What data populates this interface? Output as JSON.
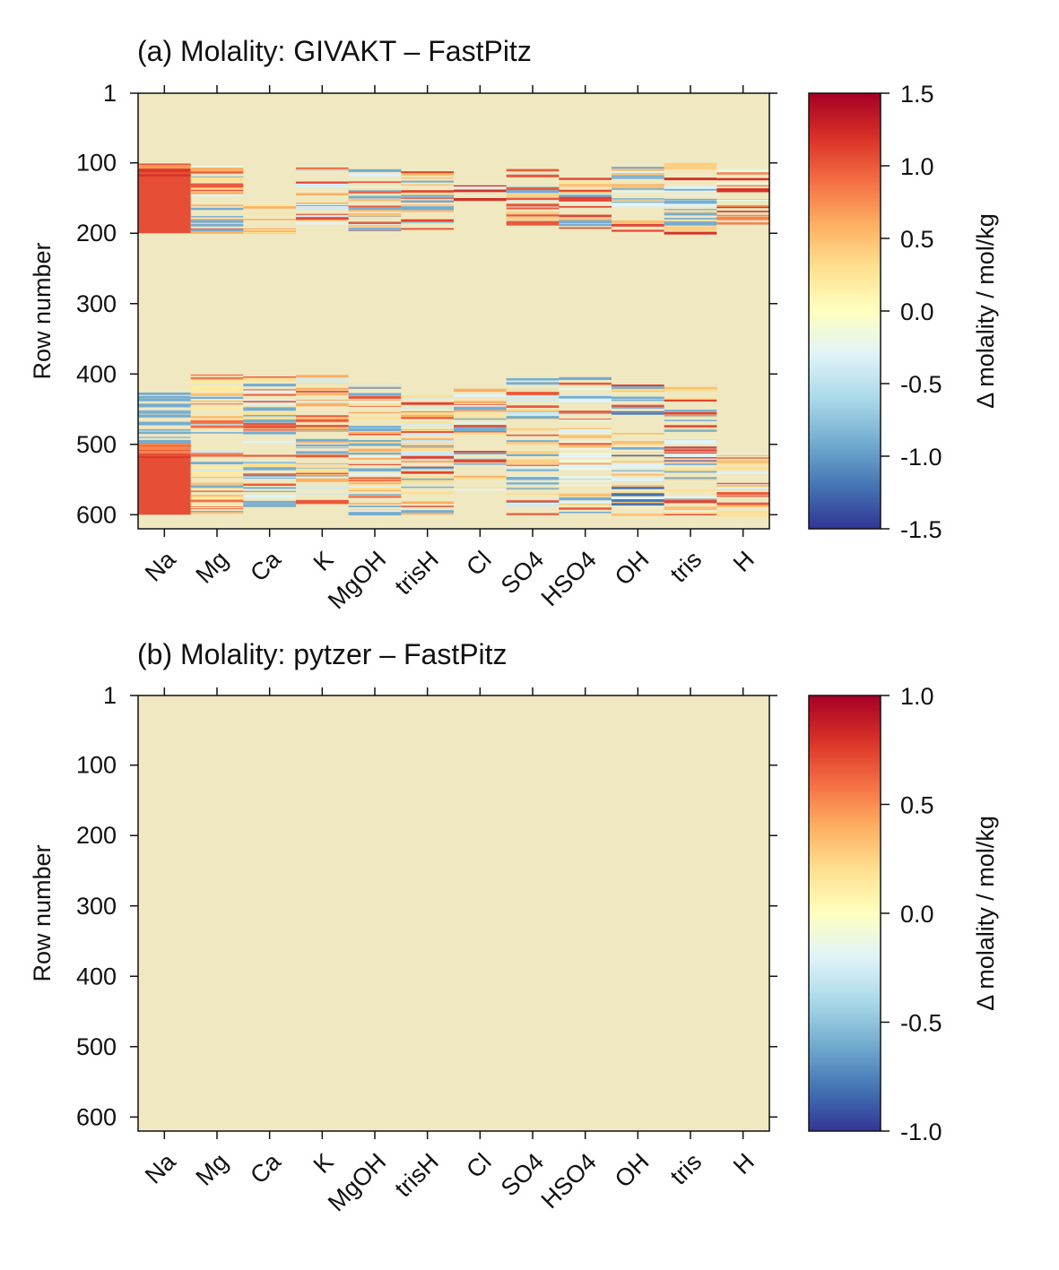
{
  "chart_data": [
    {
      "type": "heatmap",
      "title": "(a) Molality: GIVAKT – FastPitz",
      "ylabel": "Row number",
      "colorbar_label": "Δ molality / mol/kg",
      "categories": [
        "Na",
        "Mg",
        "Ca",
        "K",
        "MgOH",
        "trisH",
        "Cl",
        "SO4",
        "HSO4",
        "OH",
        "tris",
        "H"
      ],
      "ylim": [
        620,
        1
      ],
      "yticks": [
        "1",
        "100",
        "200",
        "300",
        "400",
        "500",
        "600"
      ],
      "ytick_values": [
        1,
        100,
        200,
        300,
        400,
        500,
        600
      ],
      "clim": [
        -1.5,
        1.5
      ],
      "cticks": [
        "1.5",
        "1.0",
        "0.5",
        "0.0",
        "-0.5",
        "-1.0",
        "-1.5"
      ],
      "ctick_values": [
        1.5,
        1.0,
        0.5,
        0.0,
        -0.5,
        -1.0,
        -1.5
      ],
      "colormap": [
        "#313695",
        "#4575b4",
        "#74add1",
        "#abd9e9",
        "#e0f3f8",
        "#ffffbf",
        "#fee090",
        "#fdae61",
        "#f46d43",
        "#d73027",
        "#a50026"
      ],
      "background_color": "#efe8c0",
      "blocks": [
        {
          "column": "Na",
          "rows": [
            101,
            200
          ],
          "value": 1.05
        },
        {
          "column": "Na",
          "rows": [
            497,
            600
          ],
          "value": 1.05
        }
      ],
      "stripes": [
        {
          "column": "Na",
          "rows": [
            101,
            125
          ],
          "values": [
            1.2,
            0.7
          ]
        },
        {
          "column": "Na",
          "rows": [
            497,
            520
          ],
          "values": [
            1.25,
            0.8
          ]
        },
        {
          "column": "Na",
          "rows": [
            425,
            495
          ],
          "values": [
            -0.9
          ]
        },
        {
          "column": "Mg",
          "rows": [
            101,
            200
          ],
          "values": [
            0.6,
            0.3,
            1.0,
            -0.3,
            -0.9,
            -0.2
          ]
        },
        {
          "column": "Mg",
          "rows": [
            400,
            600
          ],
          "values": [
            -0.9,
            0.9,
            -0.4,
            0.5,
            0.2
          ]
        },
        {
          "column": "Ca",
          "rows": [
            158,
            200
          ],
          "values": [
            0.3,
            0.6,
            1.0,
            0.2
          ]
        },
        {
          "column": "Ca",
          "rows": [
            400,
            590
          ],
          "values": [
            -0.9,
            1.0,
            0.3,
            -0.3,
            -0.9
          ]
        },
        {
          "column": "K",
          "rows": [
            100,
            185
          ],
          "values": [
            -0.4,
            0.6,
            1.1,
            -0.3
          ]
        },
        {
          "column": "K",
          "rows": [
            400,
            590
          ],
          "values": [
            0.6,
            1.0,
            -0.9,
            0.3,
            -0.4
          ]
        },
        {
          "column": "MgOH",
          "rows": [
            100,
            198
          ],
          "values": [
            0.5,
            -0.9,
            0.3,
            1.0,
            -0.3
          ]
        },
        {
          "column": "MgOH",
          "rows": [
            400,
            600
          ],
          "values": [
            1.0,
            0.6,
            0.3,
            -0.9,
            -0.3
          ]
        },
        {
          "column": "trisH",
          "rows": [
            108,
            198
          ],
          "values": [
            0.3,
            -0.9,
            1.1,
            0.5
          ]
        },
        {
          "column": "trisH",
          "rows": [
            415,
            600
          ],
          "values": [
            1.1,
            -0.9,
            0.6,
            0.3,
            -0.4
          ]
        },
        {
          "column": "Cl",
          "rows": [
            125,
            155
          ],
          "values": [
            1.2,
            -0.9,
            0.5,
            -0.3
          ]
        },
        {
          "column": "Cl",
          "rows": [
            420,
            565
          ],
          "values": [
            -0.9,
            1.1,
            0.6,
            -0.3,
            0.3
          ]
        },
        {
          "column": "SO4",
          "rows": [
            108,
            192
          ],
          "values": [
            -0.9,
            0.4,
            -0.4,
            1.0
          ]
        },
        {
          "column": "SO4",
          "rows": [
            400,
            600
          ],
          "values": [
            -0.9,
            1.0,
            -0.4,
            0.4,
            -0.2
          ]
        },
        {
          "column": "HSO4",
          "rows": [
            108,
            198
          ],
          "values": [
            1.1,
            -0.9,
            0.5,
            -0.3,
            0.3
          ]
        },
        {
          "column": "HSO4",
          "rows": [
            400,
            600
          ],
          "values": [
            -0.3,
            1.0,
            -0.9,
            0.5,
            -0.2
          ]
        },
        {
          "column": "OH",
          "rows": [
            100,
            198
          ],
          "values": [
            -0.9,
            1.1,
            0.5,
            -0.3
          ]
        },
        {
          "column": "OH",
          "rows": [
            410,
            600
          ],
          "values": [
            1.1,
            -0.9,
            0.5,
            -0.3,
            -1.2,
            0.3
          ]
        },
        {
          "column": "tris",
          "rows": [
            100,
            198
          ],
          "values": [
            1.2,
            -0.9,
            0.4,
            -0.3
          ]
        },
        {
          "column": "tris",
          "rows": [
            412,
            600
          ],
          "values": [
            1.1,
            -0.9,
            -0.3,
            0.5,
            0.3
          ]
        },
        {
          "column": "H",
          "rows": [
            104,
            188
          ],
          "values": [
            1.2,
            0.8,
            -0.2
          ]
        },
        {
          "column": "H",
          "rows": [
            505,
            600
          ],
          "values": [
            1.0,
            0.5,
            0.3,
            -0.3
          ]
        }
      ]
    },
    {
      "type": "heatmap",
      "title": "(b) Molality: pytzer – FastPitz",
      "ylabel": "Row number",
      "colorbar_label": "Δ molality / mol/kg",
      "categories": [
        "Na",
        "Mg",
        "Ca",
        "K",
        "MgOH",
        "trisH",
        "Cl",
        "SO4",
        "HSO4",
        "OH",
        "tris",
        "H"
      ],
      "ylim": [
        620,
        1
      ],
      "yticks": [
        "1",
        "100",
        "200",
        "300",
        "400",
        "500",
        "600"
      ],
      "ytick_values": [
        1,
        100,
        200,
        300,
        400,
        500,
        600
      ],
      "clim": [
        -1.0,
        1.0
      ],
      "cticks": [
        "1.0",
        "0.5",
        "0.0",
        "-0.5",
        "-1.0"
      ],
      "ctick_values": [
        1.0,
        0.5,
        0.0,
        -0.5,
        -1.0
      ],
      "colormap": [
        "#313695",
        "#4575b4",
        "#74add1",
        "#abd9e9",
        "#e0f3f8",
        "#ffffbf",
        "#fee090",
        "#fdae61",
        "#f46d43",
        "#d73027",
        "#a50026"
      ],
      "background_color": "#efe8c0",
      "blocks": [],
      "stripes": []
    }
  ]
}
